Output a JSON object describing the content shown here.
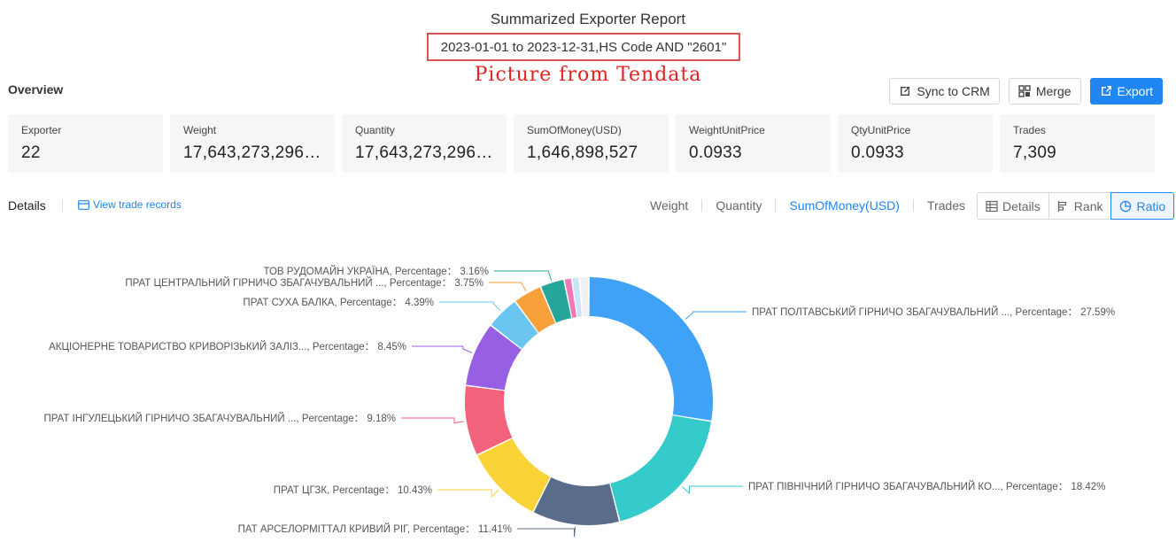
{
  "header": {
    "title": "Summarized Exporter Report",
    "query": "2023-01-01 to 2023-12-31,HS Code AND \"2601\"",
    "watermark": "Picture from Tendata"
  },
  "overview": {
    "label": "Overview",
    "actions": {
      "sync": "Sync to CRM",
      "merge": "Merge",
      "export": "Export"
    },
    "stats": [
      {
        "label": "Exporter",
        "value": "22"
      },
      {
        "label": "Weight",
        "value": "17,643,273,296...."
      },
      {
        "label": "Quantity",
        "value": "17,643,273,296...."
      },
      {
        "label": "SumOfMoney(USD)",
        "value": "1,646,898,527"
      },
      {
        "label": "WeightUnitPrice",
        "value": "0.0933"
      },
      {
        "label": "QtyUnitPrice",
        "value": "0.0933"
      },
      {
        "label": "Trades",
        "value": "7,309"
      }
    ]
  },
  "details": {
    "label": "Details",
    "view_link": "View trade records",
    "metric_tabs": [
      "Weight",
      "Quantity",
      "SumOfMoney(USD)",
      "Trades"
    ],
    "active_metric": "SumOfMoney(USD)",
    "view_buttons": [
      "Details",
      "Rank",
      "Ratio"
    ],
    "active_view": "Ratio"
  },
  "colors": {
    "accent": "#1f86f2",
    "query_border": "#d9534f",
    "watermark": "#e8201f"
  },
  "chart_data": {
    "type": "pie",
    "style": "donut",
    "label_prefix": "Percentage：",
    "series": [
      {
        "name": "ПРАТ ПОЛТАВСЬКИЙ ГІРНИЧО ЗБАГАЧУВАЛЬНИЙ ...",
        "value": 27.59,
        "label": "27.59%",
        "color": "#3fa2f7"
      },
      {
        "name": "ПРАТ ПІВНІЧНИЙ ГІРНИЧО ЗБАГАЧУВАЛЬНИЙ КО...",
        "value": 18.42,
        "label": "18.42%",
        "color": "#36cbcb"
      },
      {
        "name": "ПАТ АРСЕЛОРМІТТАЛ КРИВИЙ РІГ",
        "value": 11.41,
        "label": "11.41%",
        "color": "#596d8b"
      },
      {
        "name": "ПРАТ ЦГЗК",
        "value": 10.43,
        "label": "10.43%",
        "color": "#fad337"
      },
      {
        "name": "ПРАТ ІНГУЛЕЦЬКИЙ ГІРНИЧО ЗБАГАЧУВАЛЬНИЙ ...",
        "value": 9.18,
        "label": "9.18%",
        "color": "#f2637b"
      },
      {
        "name": "АКЦІОНЕРНЕ ТОВАРИСТВО КРИВОРІЗЬКИЙ ЗАЛІЗ...",
        "value": 8.45,
        "label": "8.45%",
        "color": "#975fe4"
      },
      {
        "name": "ПРАТ СУХА БАЛКА",
        "value": 4.39,
        "label": "4.39%",
        "color": "#6ac6f0"
      },
      {
        "name": "ПРАТ ЦЕНТРАЛЬНИЙ ГІРНИЧО ЗБАГАЧУВАЛЬНИЙ ...",
        "value": 3.75,
        "label": "3.75%",
        "color": "#f8a13b"
      },
      {
        "name": "ТОВ РУДОМАЙН УКРАЇНА",
        "value": 3.16,
        "label": "3.16%",
        "color": "#26a69a"
      },
      {
        "name": "",
        "value": 1.0,
        "label": "",
        "color": "#f178b6"
      },
      {
        "name": "",
        "value": 1.0,
        "label": "",
        "color": "#c9e4f9"
      },
      {
        "name": "",
        "value": 1.22,
        "label": "",
        "color": "#f0f0f0"
      }
    ]
  }
}
